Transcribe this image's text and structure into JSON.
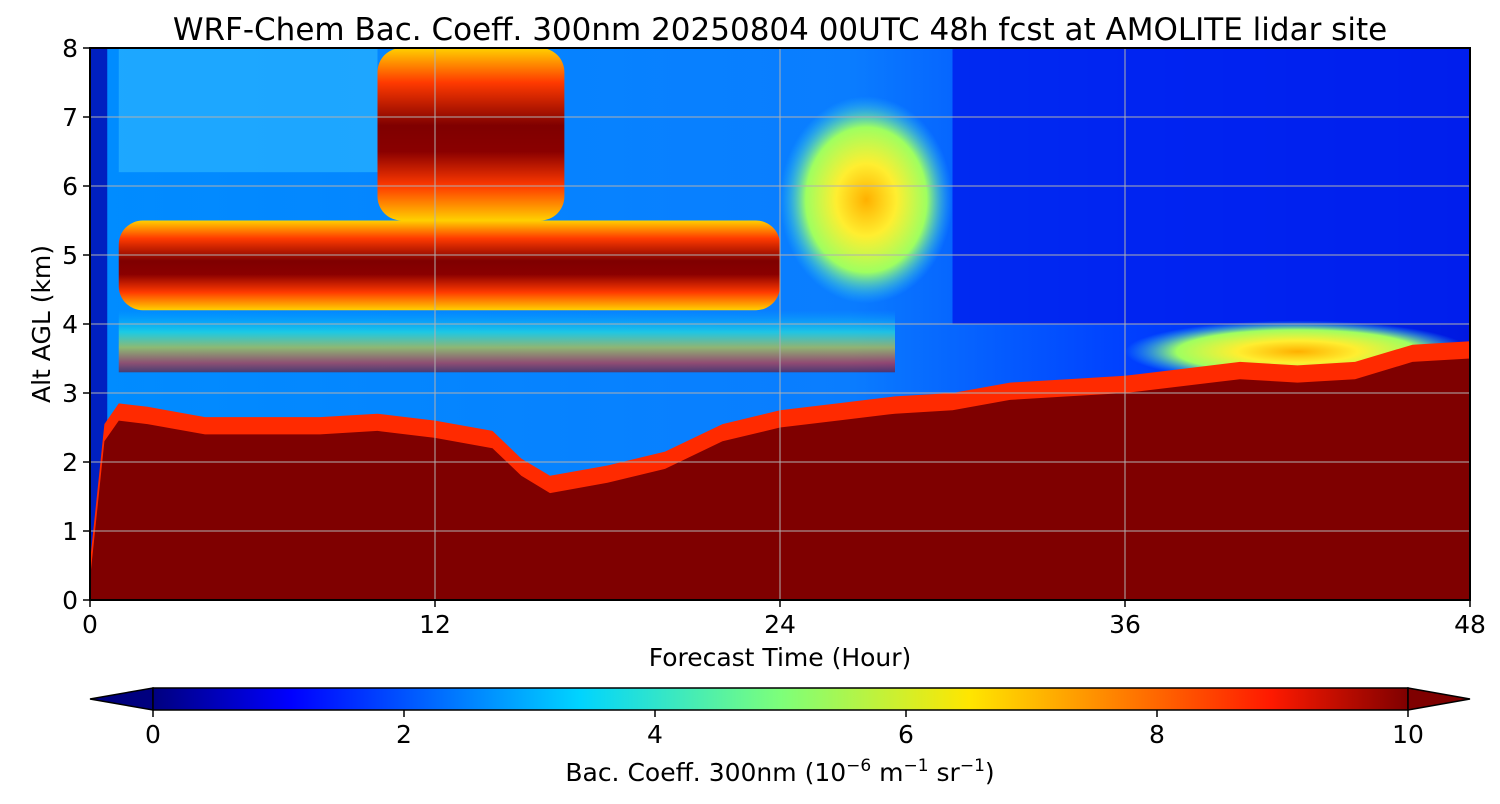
{
  "chart_data": {
    "type": "heatmap",
    "title": "WRF-Chem Bac. Coeff. 300nm  20250804 00UTC 48h fcst at AMOLITE lidar site",
    "xlabel": "Forecast Time (Hour)",
    "ylabel": "Alt AGL (km)",
    "xlim": [
      0,
      48
    ],
    "ylim": [
      0,
      8
    ],
    "x_ticks": [
      0,
      12,
      24,
      36,
      48
    ],
    "x_tick_labels": [
      "0",
      "12",
      "24",
      "36",
      "48"
    ],
    "y_ticks": [
      0,
      1,
      2,
      3,
      4,
      5,
      6,
      7,
      8
    ],
    "y_tick_labels": [
      "0",
      "1",
      "2",
      "3",
      "4",
      "5",
      "6",
      "7",
      "8"
    ],
    "grid": true,
    "colormap": "jet",
    "colorbar": {
      "label_main": "Bac. Coeff. 300nm  (10",
      "label_exp1": "−6",
      "label_mid": " m",
      "label_exp2": "−1",
      "label_mid2": " sr",
      "label_exp3": "−1",
      "label_end": ")",
      "min": 0,
      "max": 10,
      "extend": "both",
      "ticks": [
        0,
        2,
        4,
        6,
        8,
        10
      ],
      "tick_labels": [
        "0",
        "2",
        "4",
        "6",
        "8",
        "10"
      ]
    },
    "field_hours": [
      0,
      0.5,
      1,
      2,
      4,
      6,
      8,
      10,
      12,
      14,
      15,
      16,
      18,
      20,
      22,
      24,
      26,
      27,
      28,
      30,
      32,
      34,
      36,
      38,
      40,
      42,
      44,
      46,
      48
    ],
    "ground_layer_top_km": [
      0.3,
      2.3,
      2.6,
      2.55,
      2.4,
      2.4,
      2.4,
      2.45,
      2.35,
      2.2,
      1.8,
      1.55,
      1.7,
      1.9,
      2.3,
      2.5,
      2.6,
      2.65,
      2.7,
      2.75,
      2.9,
      2.95,
      3.0,
      3.1,
      3.2,
      3.15,
      3.2,
      3.45,
      3.5
    ],
    "upper_layers": [
      {
        "level": "max",
        "center_hours": 12,
        "center_km": 4.8,
        "extent_hours": [
          1,
          24
        ],
        "extent_km": [
          4.2,
          5.5
        ]
      },
      {
        "level": "max",
        "center_hours": 13.5,
        "center_km": 7.0,
        "extent_hours": [
          10,
          16.5
        ],
        "extent_km": [
          5.5,
          8.0
        ]
      },
      {
        "level": "moderate",
        "center_hours": 27,
        "center_km": 5.8,
        "extent_hours": [
          24,
          30
        ],
        "extent_km": [
          4.5,
          7.5
        ]
      },
      {
        "level": "moderate",
        "center_hours": 42,
        "center_km": 3.6,
        "extent_hours": [
          36,
          48
        ],
        "extent_km": [
          3.0,
          3.9
        ]
      }
    ]
  }
}
